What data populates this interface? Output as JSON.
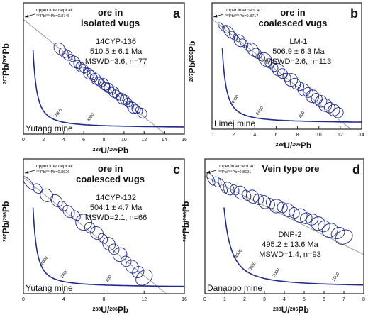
{
  "figure": {
    "colors": {
      "ellipse": "#1f2a8a",
      "concordia": "#1f2a8a",
      "axes": "#222222",
      "discordia": "#9a9a9a",
      "text": "#111111"
    }
  },
  "chart_data": [
    {
      "type": "scatter",
      "panel_letter": "a",
      "heading": [
        "ore in",
        "isolated vugs"
      ],
      "sample": "14CYP-136",
      "age": "510.5 ± 6.1 Ma",
      "mswd": "MSWD=3.6, n=77",
      "intercept_text": [
        "upper intercept at:",
        "²⁰⁷Pb/²⁰⁶Pb=0.8745"
      ],
      "location": "Yutang mine",
      "xlabel_parts": [
        "238",
        "U/",
        "206",
        "Pb"
      ],
      "ylabel_parts": [
        "207",
        "Pb/",
        "206",
        "Pb"
      ],
      "xlim": [
        0,
        16
      ],
      "ylim": [
        0,
        1.0
      ],
      "xticks": [
        0,
        2,
        4,
        6,
        8,
        10,
        12,
        14,
        16
      ],
      "concordia_labels": [
        {
          "text": "3600",
          "x": 3.3
        },
        {
          "text": "2000",
          "x": 6.5
        }
      ],
      "discordia": {
        "intercept_y": 0.8745,
        "x_at_zero": 14.1
      },
      "x": [
        3.6,
        4.0,
        4.4,
        4.8,
        5.1,
        5.4,
        5.7,
        6.0,
        6.3,
        6.5,
        6.8,
        7.0,
        7.2,
        7.5,
        7.8,
        8.0,
        8.2,
        8.5,
        8.8,
        9.0,
        9.3,
        9.6,
        9.8,
        10.1,
        10.4,
        10.6,
        10.9,
        11.2,
        11.5,
        11.8
      ],
      "y": [
        0.65,
        0.62,
        0.6,
        0.58,
        0.55,
        0.53,
        0.51,
        0.5,
        0.48,
        0.46,
        0.45,
        0.43,
        0.42,
        0.4,
        0.39,
        0.38,
        0.36,
        0.35,
        0.33,
        0.32,
        0.3,
        0.28,
        0.27,
        0.26,
        0.24,
        0.22,
        0.2,
        0.19,
        0.18,
        0.16
      ],
      "err": [
        [
          0.5,
          0.05
        ],
        [
          0.4,
          0.04
        ],
        [
          0.45,
          0.04
        ],
        [
          0.3,
          0.03
        ],
        [
          0.5,
          0.05
        ],
        [
          0.35,
          0.035
        ],
        [
          0.45,
          0.04
        ],
        [
          0.4,
          0.035
        ],
        [
          0.3,
          0.03
        ],
        [
          0.5,
          0.045
        ],
        [
          0.4,
          0.04
        ],
        [
          0.35,
          0.03
        ],
        [
          0.5,
          0.045
        ],
        [
          0.4,
          0.035
        ],
        [
          0.3,
          0.03
        ],
        [
          0.5,
          0.05
        ],
        [
          0.4,
          0.035
        ],
        [
          0.45,
          0.04
        ],
        [
          0.3,
          0.03
        ],
        [
          0.5,
          0.045
        ],
        [
          0.4,
          0.04
        ],
        [
          0.35,
          0.03
        ],
        [
          0.5,
          0.045
        ],
        [
          0.45,
          0.04
        ],
        [
          0.4,
          0.035
        ],
        [
          0.35,
          0.03
        ],
        [
          0.5,
          0.045
        ],
        [
          0.4,
          0.035
        ],
        [
          0.3,
          0.03
        ],
        [
          0.45,
          0.04
        ]
      ]
    },
    {
      "type": "scatter",
      "panel_letter": "b",
      "heading": [
        "ore in",
        "coalesced vugs"
      ],
      "sample": "LM-1",
      "age": "506.9 ± 6.3 Ma",
      "mswd": "MSWD=2.6, n=113",
      "intercept_text": [
        "upper intercept at:",
        "²⁰⁷Pb/²⁰⁶Pb=0.8717"
      ],
      "location": "Limei mine",
      "xlabel_parts": [
        "238",
        "U/",
        "206",
        "Pb"
      ],
      "ylabel_parts": [
        "207",
        "Pb/",
        "206",
        "Pb"
      ],
      "xlim": [
        0,
        14
      ],
      "ylim": [
        0,
        1.0
      ],
      "xticks": [
        0,
        2,
        4,
        6,
        8,
        10,
        12,
        14
      ],
      "concordia_labels": [
        {
          "text": "4000",
          "x": 2.0
        },
        {
          "text": "2400",
          "x": 4.3
        },
        {
          "text": "800",
          "x": 8.3
        }
      ],
      "discordia": {
        "intercept_y": 0.8717,
        "x_at_zero": 13.0
      },
      "x": [
        0.9,
        1.3,
        1.6,
        2.0,
        2.3,
        2.6,
        3.0,
        3.4,
        3.8,
        4.2,
        4.6,
        5.0,
        5.4,
        5.8,
        6.2,
        6.6,
        7.0,
        7.4,
        7.8,
        8.2,
        8.6,
        9.0,
        9.4,
        9.8,
        10.2,
        10.6,
        11.0,
        11.4,
        11.8
      ],
      "y": [
        0.81,
        0.79,
        0.77,
        0.74,
        0.72,
        0.7,
        0.68,
        0.65,
        0.63,
        0.6,
        0.57,
        0.55,
        0.52,
        0.49,
        0.47,
        0.44,
        0.41,
        0.39,
        0.36,
        0.34,
        0.31,
        0.29,
        0.26,
        0.24,
        0.22,
        0.19,
        0.17,
        0.15,
        0.13
      ],
      "err": [
        [
          0.2,
          0.04
        ],
        [
          0.25,
          0.035
        ],
        [
          0.4,
          0.06
        ],
        [
          0.3,
          0.04
        ],
        [
          0.2,
          0.035
        ],
        [
          0.5,
          0.05
        ],
        [
          0.3,
          0.04
        ],
        [
          0.35,
          0.035
        ],
        [
          0.5,
          0.06
        ],
        [
          0.4,
          0.045
        ],
        [
          0.3,
          0.035
        ],
        [
          0.55,
          0.06
        ],
        [
          0.4,
          0.04
        ],
        [
          0.35,
          0.035
        ],
        [
          0.55,
          0.05
        ],
        [
          0.45,
          0.04
        ],
        [
          0.35,
          0.035
        ],
        [
          0.6,
          0.05
        ],
        [
          0.45,
          0.045
        ],
        [
          0.4,
          0.035
        ],
        [
          0.55,
          0.05
        ],
        [
          0.45,
          0.04
        ],
        [
          0.6,
          0.05
        ],
        [
          0.5,
          0.045
        ],
        [
          0.55,
          0.045
        ],
        [
          0.6,
          0.05
        ],
        [
          0.5,
          0.04
        ],
        [
          0.55,
          0.045
        ],
        [
          0.5,
          0.04
        ]
      ]
    },
    {
      "type": "scatter",
      "panel_letter": "c",
      "heading": [
        "ore in",
        "coalesced vugs"
      ],
      "sample": "14CYP-132",
      "age": "504.1 ± 4.7 Ma",
      "mswd": "MSWD=2.1, n=66",
      "intercept_text": [
        "upper intercept at:",
        "²⁰⁷Pb/²⁰⁶Pb=0.8626"
      ],
      "location": "Yutang mine",
      "xlabel_parts": [
        "238",
        "U/",
        "206",
        "Pb"
      ],
      "ylabel_parts": [
        "207",
        "Pb/",
        "206",
        "Pb"
      ],
      "xlim": [
        0,
        16
      ],
      "ylim": [
        0,
        1.0
      ],
      "xticks": [
        0,
        4,
        8,
        12,
        16
      ],
      "concordia_labels": [
        {
          "text": "4000",
          "x": 1.9
        },
        {
          "text": "2400",
          "x": 3.9
        },
        {
          "text": "800",
          "x": 8.4
        }
      ],
      "discordia": {
        "intercept_y": 0.8626,
        "x_at_zero": 14.2
      },
      "x": [
        0.5,
        1.4,
        2.3,
        3.3,
        3.9,
        4.5,
        5.2,
        6.0,
        6.6,
        7.3,
        7.9,
        8.5,
        9.0,
        9.6,
        10.2,
        10.8,
        11.4,
        12.0
      ],
      "y": [
        0.82,
        0.78,
        0.73,
        0.69,
        0.65,
        0.61,
        0.58,
        0.53,
        0.49,
        0.45,
        0.41,
        0.37,
        0.33,
        0.29,
        0.24,
        0.2,
        0.16,
        0.12
      ],
      "err": [
        [
          0.3,
          0.06
        ],
        [
          0.4,
          0.04
        ],
        [
          0.6,
          0.05
        ],
        [
          0.5,
          0.05
        ],
        [
          0.4,
          0.04
        ],
        [
          0.5,
          0.05
        ],
        [
          0.4,
          0.04
        ],
        [
          0.8,
          0.06
        ],
        [
          0.5,
          0.04
        ],
        [
          0.6,
          0.05
        ],
        [
          0.4,
          0.04
        ],
        [
          0.6,
          0.05
        ],
        [
          0.5,
          0.04
        ],
        [
          0.7,
          0.05
        ],
        [
          0.5,
          0.04
        ],
        [
          0.6,
          0.05
        ],
        [
          0.6,
          0.04
        ],
        [
          0.9,
          0.05
        ]
      ]
    },
    {
      "type": "scatter",
      "panel_letter": "d",
      "heading": [
        "Vein type ore"
      ],
      "sample": "DNP-2",
      "age": "495.2 ± 13.6 Ma",
      "mswd": "MSWD=1.4, n=93",
      "intercept_text": [
        "upper intercept at:",
        "²⁰⁷Pb/²⁰⁶Pb=0.8691"
      ],
      "location": "Danaopo mine",
      "xlabel_parts": [
        "238",
        "U/",
        "206",
        "Pb"
      ],
      "ylabel_parts": [
        "207",
        "Pb/",
        "206",
        "Pb"
      ],
      "xlim": [
        0,
        8
      ],
      "ylim": [
        0,
        1.0
      ],
      "xticks": [
        0,
        1,
        2,
        3,
        4,
        5,
        6,
        7,
        8
      ],
      "concordia_labels": [
        {
          "text": "4000",
          "x": 1.6
        },
        {
          "text": "3000",
          "x": 2.3
        },
        {
          "text": "2000",
          "x": 3.5
        },
        {
          "text": "1000",
          "x": 6.5
        }
      ],
      "discordia": {
        "intercept_y": 0.8691,
        "x_at_zero": 12.0
      },
      "x": [
        0.3,
        0.6,
        0.9,
        1.2,
        1.5,
        1.8,
        2.1,
        2.4,
        2.7,
        3.0,
        3.3,
        3.6,
        3.9,
        4.2,
        4.5,
        4.8,
        5.1,
        5.4,
        5.7,
        6.0,
        6.3,
        6.7,
        7.0
      ],
      "y": [
        0.85,
        0.83,
        0.8,
        0.78,
        0.77,
        0.75,
        0.73,
        0.72,
        0.7,
        0.68,
        0.67,
        0.65,
        0.64,
        0.62,
        0.6,
        0.58,
        0.56,
        0.55,
        0.52,
        0.5,
        0.47,
        0.45,
        0.42
      ],
      "err": [
        [
          0.15,
          0.05
        ],
        [
          0.2,
          0.04
        ],
        [
          0.15,
          0.06
        ],
        [
          0.25,
          0.05
        ],
        [
          0.2,
          0.04
        ],
        [
          0.3,
          0.05
        ],
        [
          0.2,
          0.04
        ],
        [
          0.3,
          0.05
        ],
        [
          0.25,
          0.04
        ],
        [
          0.3,
          0.05
        ],
        [
          0.2,
          0.04
        ],
        [
          0.35,
          0.05
        ],
        [
          0.25,
          0.04
        ],
        [
          0.3,
          0.05
        ],
        [
          0.25,
          0.04
        ],
        [
          0.35,
          0.05
        ],
        [
          0.3,
          0.04
        ],
        [
          0.3,
          0.04
        ],
        [
          0.35,
          0.05
        ],
        [
          0.3,
          0.04
        ],
        [
          0.4,
          0.05
        ],
        [
          0.35,
          0.04
        ],
        [
          0.45,
          0.05
        ]
      ]
    }
  ]
}
